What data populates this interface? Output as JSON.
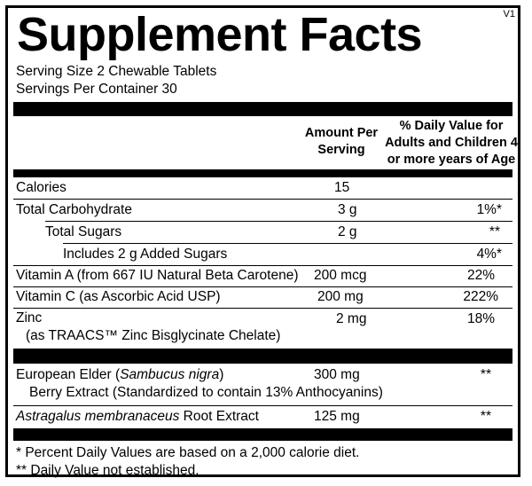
{
  "title": "Supplement Facts",
  "version": "V1",
  "serving_size": "Serving Size 2 Chewable Tablets",
  "servings_per_container": "Servings Per Container 30",
  "header": {
    "amount_line1": "Amount Per",
    "amount_line2": "Serving",
    "dv_line1": "% Daily Value for",
    "dv_line2": "Adults and Children 4",
    "dv_line3": "or more years of Age"
  },
  "rows": [
    {
      "name": "Calories",
      "amount": "15",
      "dv": ""
    },
    {
      "name": "Total Carbohydrate",
      "amount": "3 g",
      "dv": "1%*"
    },
    {
      "name": "Total Sugars",
      "amount": "2 g",
      "dv": "**"
    },
    {
      "name": "Includes 2 g Added Sugars",
      "amount": "",
      "dv": "4%*"
    },
    {
      "name": "Vitamin A (from 667 IU Natural Beta Carotene)",
      "amount": "200 mcg",
      "dv": "22%"
    },
    {
      "name": "Vitamin C (as Ascorbic Acid USP)",
      "amount": "200 mg",
      "dv": "222%"
    },
    {
      "name": "Zinc",
      "name_line2": "(as TRAACS™ Zinc Bisglycinate Chelate)",
      "amount": "2 mg",
      "dv": "18%"
    }
  ],
  "other": [
    {
      "name_prefix": "European Elder (",
      "name_italic": "Sambucus nigra",
      "name_suffix": ")",
      "name_line2": "Berry Extract (Standardized to contain 13% Anthocyanins)",
      "amount": "300 mg",
      "dv": "**"
    },
    {
      "name_italic": "Astragalus membranaceus",
      "name_suffix": " Root Extract",
      "amount": "125 mg",
      "dv": "**"
    }
  ],
  "footnotes": [
    "* Percent Daily Values are based on a 2,000 calorie diet.",
    "** Daily Value not established."
  ]
}
